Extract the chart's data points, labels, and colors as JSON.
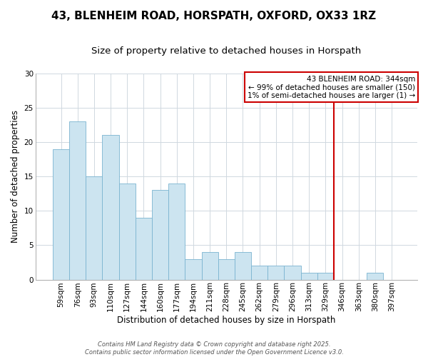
{
  "title": "43, BLENHEIM ROAD, HORSPATH, OXFORD, OX33 1RZ",
  "subtitle": "Size of property relative to detached houses in Horspath",
  "xlabel": "Distribution of detached houses by size in Horspath",
  "ylabel": "Number of detached properties",
  "bin_labels": [
    "59sqm",
    "76sqm",
    "93sqm",
    "110sqm",
    "127sqm",
    "144sqm",
    "160sqm",
    "177sqm",
    "194sqm",
    "211sqm",
    "228sqm",
    "245sqm",
    "262sqm",
    "279sqm",
    "296sqm",
    "313sqm",
    "329sqm",
    "346sqm",
    "363sqm",
    "380sqm",
    "397sqm"
  ],
  "bar_heights": [
    19,
    23,
    15,
    21,
    14,
    9,
    13,
    14,
    3,
    4,
    3,
    4,
    2,
    2,
    2,
    1,
    1,
    0,
    0,
    1,
    0
  ],
  "bar_color": "#cce4f0",
  "bar_edge_color": "#7ab4d0",
  "background_color": "#ffffff",
  "grid_color": "#d0d8e0",
  "vline_color": "#cc0000",
  "annotation_line1": "43 BLENHEIM ROAD: 344sqm",
  "annotation_line2": "← 99% of detached houses are smaller (150)",
  "annotation_line3": "1% of semi-detached houses are larger (1) →",
  "annotation_box_color": "#cc0000",
  "ylim": [
    0,
    30
  ],
  "yticks": [
    0,
    5,
    10,
    15,
    20,
    25,
    30
  ],
  "title_fontsize": 11,
  "subtitle_fontsize": 9.5,
  "axis_label_fontsize": 8.5,
  "tick_fontsize": 7.5,
  "annotation_fontsize": 7.5,
  "footer_text1": "Contains HM Land Registry data © Crown copyright and database right 2025.",
  "footer_text2": "Contains public sector information licensed under the Open Government Licence v3.0.",
  "footer_fontsize": 6.0
}
